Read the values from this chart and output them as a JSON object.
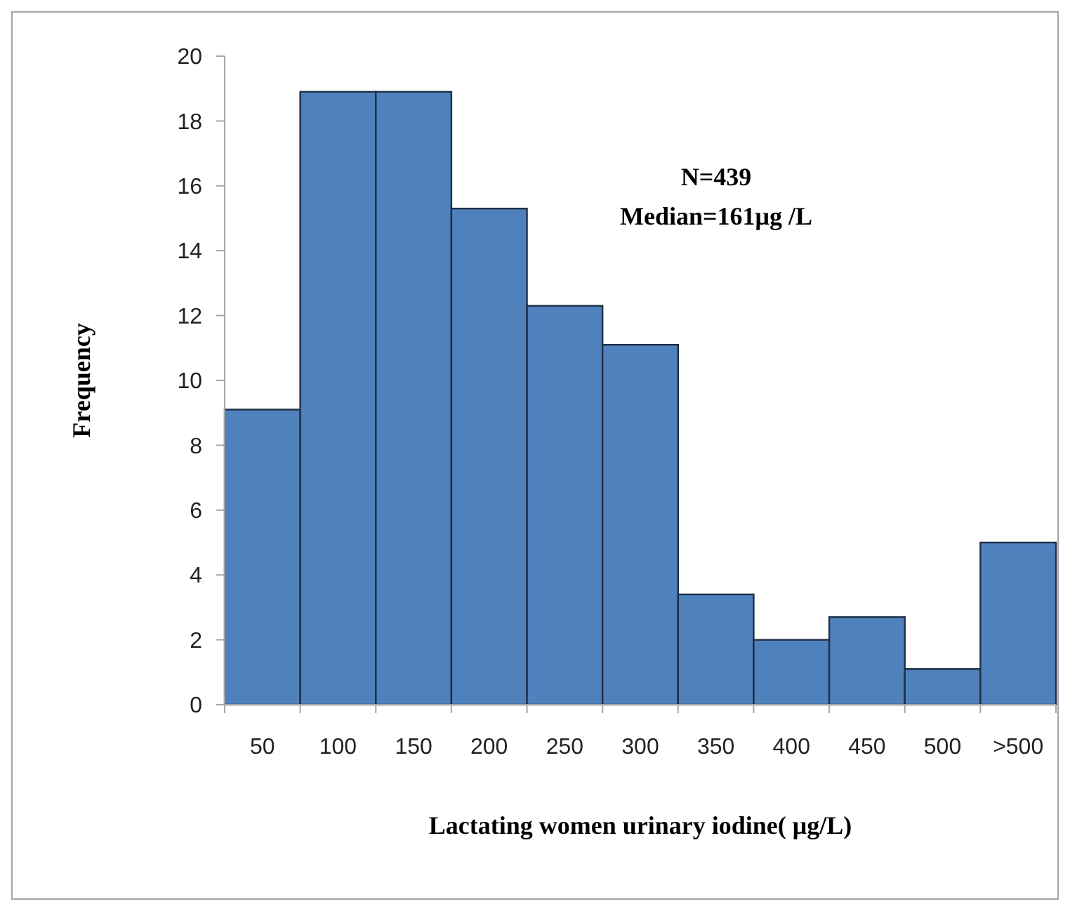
{
  "chart_data": {
    "type": "bar",
    "xlabel": "Lactating women urinary iodine( μg/L)",
    "ylabel": "Frequency",
    "categories": [
      "50",
      "100",
      "150",
      "200",
      "250",
      "300",
      "350",
      "400",
      "450",
      "500",
      ">500"
    ],
    "values": [
      9.1,
      18.9,
      18.9,
      15.3,
      12.3,
      11.1,
      3.4,
      2.0,
      2.7,
      1.1,
      5.0
    ],
    "color": "#4f81bd",
    "ylim": [
      0,
      20
    ],
    "yticks": [
      0,
      2,
      4,
      6,
      8,
      10,
      12,
      14,
      16,
      18,
      20
    ],
    "annotations": [
      "N=439",
      "Median=161μg /L"
    ]
  }
}
